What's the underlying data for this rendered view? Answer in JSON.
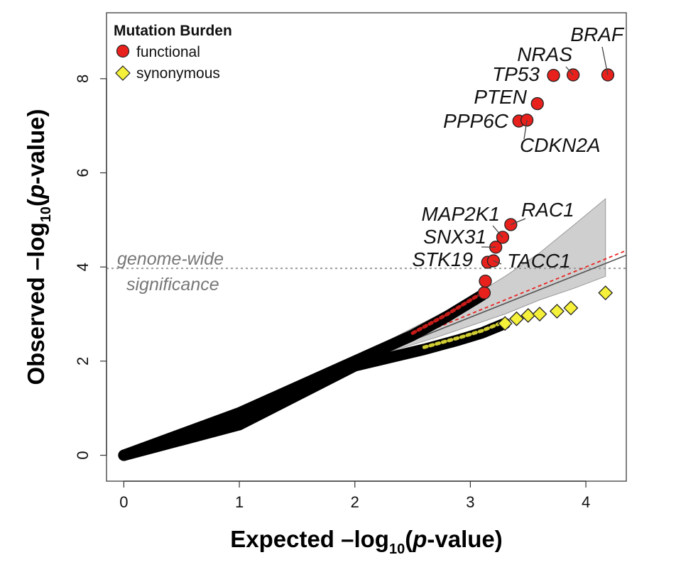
{
  "chart_data": {
    "type": "scatter",
    "xlabel_main": "Expected –log",
    "xlabel_sub": "10",
    "xlabel_tail_open": "(",
    "xlabel_p": "p",
    "xlabel_tail_close": "-value)",
    "ylabel_main": "Observed –log",
    "ylabel_sub": "10",
    "ylabel_tail_open": "(",
    "ylabel_p": "p",
    "ylabel_tail_close": "-value)",
    "xlim": [
      -0.15,
      4.35
    ],
    "ylim": [
      -0.55,
      9.4
    ],
    "x_ticks": [
      "0",
      "1",
      "2",
      "3",
      "4"
    ],
    "y_ticks": [
      "0",
      "2",
      "4",
      "6",
      "8"
    ],
    "legend": {
      "title": "Mutation Burden",
      "items": [
        {
          "name": "functional",
          "color": "#e8211d",
          "shape": "circle"
        },
        {
          "name": "synonymous",
          "color": "#f5f03a",
          "shape": "diamond"
        }
      ]
    },
    "significance": {
      "y": 3.97,
      "label_line1": "genome-wide",
      "label_line2": "significance"
    },
    "series": [
      {
        "name": "functional",
        "color": "#e8211d",
        "trend": [
          [
            0,
            0
          ],
          [
            1.0,
            0.9
          ],
          [
            2.0,
            2.0
          ],
          [
            2.5,
            2.55
          ],
          [
            2.8,
            2.95
          ],
          [
            3.0,
            3.25
          ],
          [
            3.1,
            3.4
          ]
        ],
        "points": [
          {
            "x": 3.12,
            "y": 3.45
          },
          {
            "x": 3.13,
            "y": 3.7
          },
          {
            "x": 3.15,
            "y": 4.1,
            "label": "STK19"
          },
          {
            "x": 3.2,
            "y": 4.13,
            "label": "TACC1"
          },
          {
            "x": 3.22,
            "y": 4.42,
            "label": "SNX31"
          },
          {
            "x": 3.28,
            "y": 4.63,
            "label": "MAP2K1"
          },
          {
            "x": 3.35,
            "y": 4.9,
            "label": "RAC1"
          },
          {
            "x": 3.42,
            "y": 7.1,
            "label": "PPP6C"
          },
          {
            "x": 3.49,
            "y": 7.12,
            "label": "CDKN2A"
          },
          {
            "x": 3.58,
            "y": 7.47,
            "label": "PTEN"
          },
          {
            "x": 3.72,
            "y": 8.07,
            "label": "TP53"
          },
          {
            "x": 3.89,
            "y": 8.08,
            "label": "NRAS"
          },
          {
            "x": 4.19,
            "y": 8.08,
            "label": "BRAF"
          }
        ]
      },
      {
        "name": "synonymous",
        "color": "#f5f03a",
        "trend": [
          [
            0,
            0
          ],
          [
            1.0,
            0.65
          ],
          [
            2.0,
            1.9
          ],
          [
            2.6,
            2.25
          ],
          [
            2.9,
            2.45
          ],
          [
            3.1,
            2.6
          ],
          [
            3.3,
            2.8
          ]
        ],
        "points": [
          {
            "x": 3.3,
            "y": 2.8
          },
          {
            "x": 3.4,
            "y": 2.9
          },
          {
            "x": 3.5,
            "y": 2.97
          },
          {
            "x": 3.6,
            "y": 3.0
          },
          {
            "x": 3.75,
            "y": 3.06
          },
          {
            "x": 3.87,
            "y": 3.13
          },
          {
            "x": 4.17,
            "y": 3.45
          }
        ]
      }
    ],
    "null_line": {
      "x": [
        0,
        4.35
      ],
      "y": [
        0,
        4.35
      ]
    },
    "fit_line": {
      "x": [
        0,
        4.35
      ],
      "y": [
        0,
        4.25
      ]
    },
    "confidence_band": {
      "x": [
        2.3,
        2.7,
        3.0,
        3.3,
        3.6,
        3.9,
        4.17
      ],
      "upper": [
        2.45,
        2.95,
        3.35,
        3.8,
        4.3,
        4.9,
        5.45
      ],
      "lower": [
        2.2,
        2.5,
        2.75,
        3.0,
        3.3,
        3.55,
        3.8
      ]
    }
  }
}
